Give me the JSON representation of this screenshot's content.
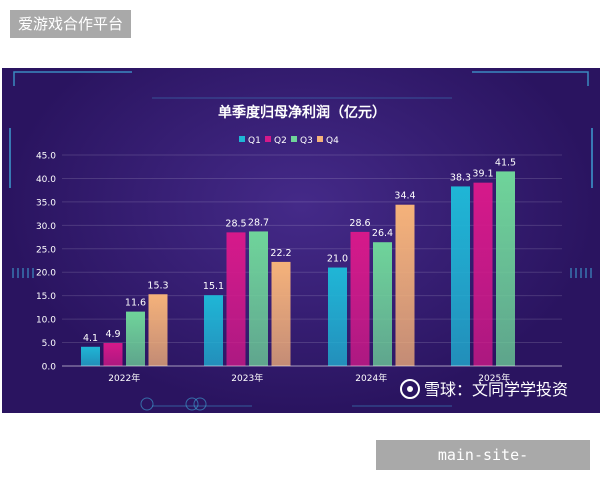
{
  "site_tag": "爱游戏合作平台",
  "url_tag": "main-site-aiyouxi.com.cn",
  "watermark": "雪球：文同学学投资",
  "chart_data": {
    "type": "bar",
    "title": "单季度归母净利润（亿元）",
    "categories": [
      "2022年",
      "2023年",
      "2024年",
      "2025年"
    ],
    "series": [
      {
        "name": "Q1",
        "values": [
          4.1,
          15.1,
          21.0,
          38.3
        ],
        "labels": [
          "4.1",
          "15.1",
          "21.0",
          "38.3"
        ],
        "color": "#1fb6d6"
      },
      {
        "name": "Q2",
        "values": [
          4.9,
          28.5,
          28.6,
          39.1
        ],
        "labels": [
          "4.9",
          "28.5",
          "28.6",
          "39.1"
        ],
        "color": "#d6198a"
      },
      {
        "name": "Q3",
        "values": [
          11.6,
          28.7,
          26.4,
          41.5
        ],
        "labels": [
          "11.6",
          "28.7",
          "26.4",
          "41.5"
        ],
        "color": "#6fd49a"
      },
      {
        "name": "Q4",
        "values": [
          15.3,
          22.2,
          34.4,
          null
        ],
        "labels": [
          "15.3",
          "22.2",
          "34.4",
          ""
        ],
        "color": "#f5b27a"
      }
    ],
    "yticks": [
      "0.0",
      "5.0",
      "10.0",
      "15.0",
      "20.0",
      "25.0",
      "30.0",
      "35.0",
      "40.0",
      "45.0"
    ],
    "ylim": [
      0,
      45
    ],
    "grid": true,
    "legend_position": "top-center",
    "xlabel": "",
    "ylabel": ""
  }
}
